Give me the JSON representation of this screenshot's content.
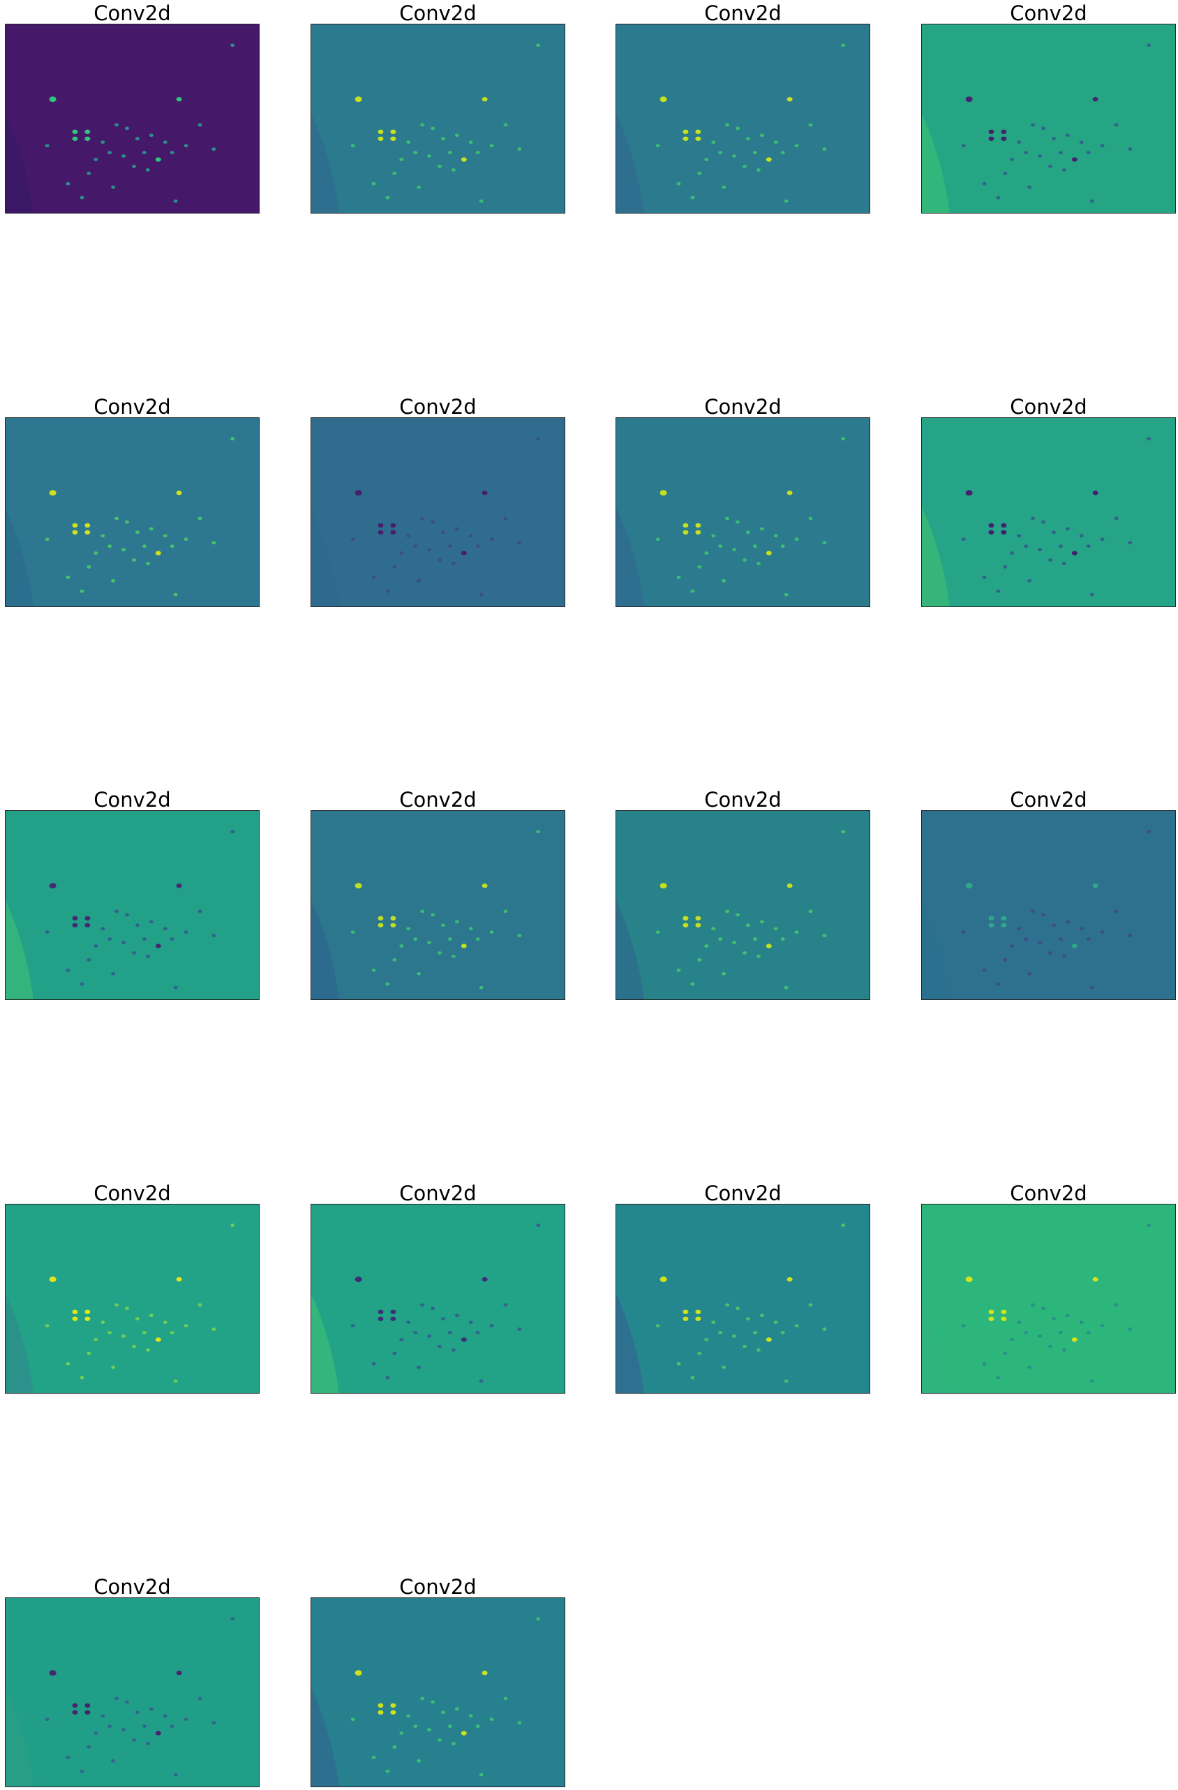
{
  "figure": {
    "panel_title": "Conv2d",
    "panels": [
      {
        "bg": "#46186a",
        "edge": "#3b1a66",
        "spot_hi": "#2ec57a",
        "spot_lo": "#2a8f8b",
        "mode": "bright"
      },
      {
        "bg": "#2b7a8e",
        "edge": "#2f6c8f",
        "spot_hi": "#c7e020",
        "spot_lo": "#3cbc75",
        "mode": "bright"
      },
      {
        "bg": "#2b7a8e",
        "edge": "#2f6c8f",
        "spot_hi": "#c7e020",
        "spot_lo": "#3cbc75",
        "mode": "bright"
      },
      {
        "bg": "#26a584",
        "edge": "#36b87a",
        "spot_hi": "#46236d",
        "spot_lo": "#33638c",
        "mode": "dark"
      },
      {
        "bg": "#2d7890",
        "edge": "#2b6d8f",
        "spot_hi": "#d1e11c",
        "spot_lo": "#49c16c",
        "mode": "bright"
      },
      {
        "bg": "#2f6c8e",
        "edge": "#2e6a8e",
        "spot_hi": "#471e6e",
        "spot_lo": "#3a4e8a",
        "mode": "dark"
      },
      {
        "bg": "#2b7a8e",
        "edge": "#2f6c8f",
        "spot_hi": "#c7e020",
        "spot_lo": "#3cbc75",
        "mode": "bright"
      },
      {
        "bg": "#25a487",
        "edge": "#3ab878",
        "spot_hi": "#471e6e",
        "spot_lo": "#34618c",
        "mode": "dark"
      },
      {
        "bg": "#22a088",
        "edge": "#36b77a",
        "spot_hi": "#452a72",
        "spot_lo": "#34608d",
        "mode": "dark"
      },
      {
        "bg": "#2c768e",
        "edge": "#2e6a8e",
        "spot_hi": "#bfdf25",
        "spot_lo": "#3cba76",
        "mode": "bright"
      },
      {
        "bg": "#288289",
        "edge": "#2d6f8d",
        "spot_hi": "#c6df22",
        "spot_lo": "#43bf70",
        "mode": "bright"
      },
      {
        "bg": "#2d718f",
        "edge": "#2d708f",
        "spot_hi": "#2fa88a",
        "spot_lo": "#3e4d89",
        "mode": "mixed"
      },
      {
        "bg": "#22a286",
        "edge": "#2b8f8b",
        "spot_hi": "#e2e519",
        "spot_lo": "#6dcd59",
        "mode": "bright"
      },
      {
        "bg": "#22a287",
        "edge": "#36b87a",
        "spot_hi": "#3d2e78",
        "spot_lo": "#33628c",
        "mode": "dark"
      },
      {
        "bg": "#24878e",
        "edge": "#2f6c8f",
        "spot_hi": "#cde11d",
        "spot_lo": "#49c06d",
        "mode": "bright"
      },
      {
        "bg": "#2db67b",
        "edge": "#2fb47c",
        "spot_hi": "#d5e31b",
        "spot_lo": "#2a8f8b",
        "mode": "mixed"
      },
      {
        "bg": "#219e88",
        "edge": "#2a9d86",
        "spot_hi": "#48246f",
        "spot_lo": "#33658d",
        "mode": "dark"
      },
      {
        "bg": "#27808e",
        "edge": "#2f6c8f",
        "spot_hi": "#cde11d",
        "spot_lo": "#3cbc75",
        "mode": "bright"
      }
    ]
  }
}
